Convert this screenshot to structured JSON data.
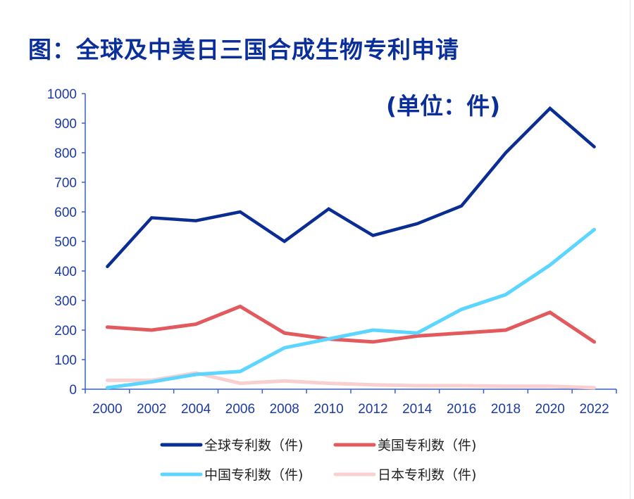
{
  "chart_data": {
    "type": "line",
    "title": "图：全球及中美日三国合成生物专利申请",
    "annotation": "(单位：件)",
    "categories": [
      "2000",
      "2002",
      "2004",
      "2006",
      "2008",
      "2010",
      "2012",
      "2014",
      "2016",
      "2018",
      "2020",
      "2022"
    ],
    "ylim": [
      0,
      1000
    ],
    "yticks": [
      0,
      100,
      200,
      300,
      400,
      500,
      600,
      700,
      800,
      900,
      1000
    ],
    "grid": false,
    "legend_position": "bottom",
    "series": [
      {
        "name": "全球专利数（件)",
        "color": "#0a2d94",
        "values": [
          415,
          580,
          570,
          600,
          500,
          610,
          520,
          560,
          620,
          800,
          950,
          820
        ]
      },
      {
        "name": "美国专利数（件)",
        "color": "#e35a5e",
        "values": [
          210,
          200,
          220,
          280,
          190,
          170,
          160,
          180,
          190,
          200,
          260,
          160
        ]
      },
      {
        "name": "中国专利数（件)",
        "color": "#5dd6ff",
        "values": [
          5,
          25,
          50,
          60,
          140,
          170,
          200,
          190,
          270,
          320,
          420,
          540
        ]
      },
      {
        "name": "日本专利数（件)",
        "color": "#f9cfcf",
        "values": [
          30,
          30,
          55,
          20,
          28,
          20,
          15,
          12,
          12,
          10,
          10,
          5
        ]
      }
    ]
  }
}
